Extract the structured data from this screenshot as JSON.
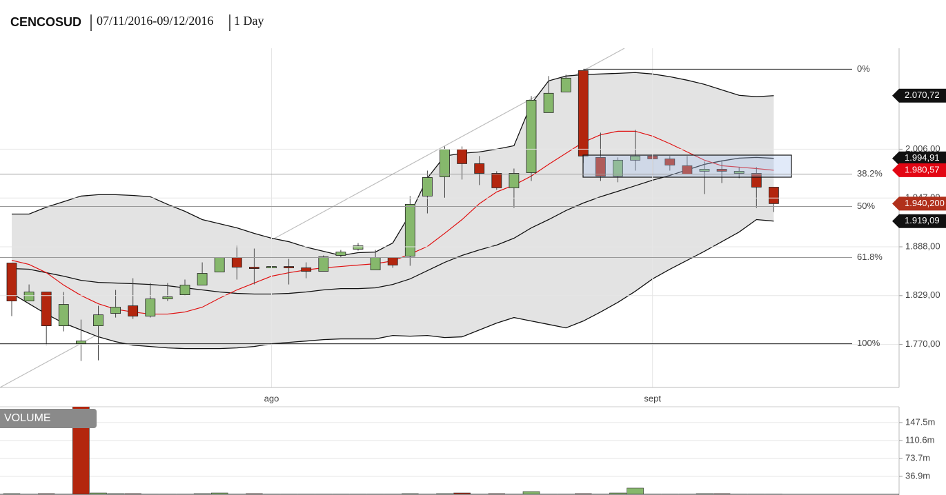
{
  "header": {
    "symbol": "CENCOSUD",
    "range": "07/11/2016-09/12/2016",
    "interval": "1 Day"
  },
  "chart_data": [
    {
      "type": "candlestick",
      "categories": [
        null,
        null,
        null,
        null,
        null,
        null,
        null,
        null,
        null,
        null,
        null,
        null,
        null,
        null,
        null,
        "ago",
        null,
        null,
        null,
        null,
        null,
        null,
        null,
        null,
        null,
        null,
        null,
        null,
        null,
        null,
        null,
        null,
        null,
        null,
        null,
        null,
        null,
        "sept",
        null,
        null,
        null,
        null,
        null,
        null,
        null
      ],
      "open": [
        1868.4,
        1822.5,
        1833.4,
        1792.5,
        1770.8,
        1792.5,
        1807.5,
        1816.7,
        1804.2,
        1825.0,
        1830.0,
        1841.7,
        1857.5,
        1875.1,
        1863.4,
        1862.6,
        1864.2,
        1862.6,
        1858.4,
        1877.6,
        1885.1,
        1860.1,
        1875.1,
        1876.7,
        1949.3,
        1972.6,
        2006.0,
        1988.5,
        1976.8,
        1959.3,
        1977.6,
        2050.2,
        2075.2,
        2101.1,
        1996.0,
        1973.5,
        1992.7,
        1997.7,
        1994.3,
        1986.0,
        1979.3,
        1981.8,
        1976.8,
        1976.8,
        1960.1
      ],
      "high": [
        1868.4,
        1842.5,
        1833.4,
        1833.4,
        1800.0,
        1816.7,
        1835.9,
        1850.0,
        1844.2,
        1844.2,
        1848.4,
        1869.2,
        1873.4,
        1889.2,
        1885.9,
        1884.2,
        1873.4,
        1869.2,
        1877.6,
        1884.2,
        1892.6,
        1884.2,
        1875.1,
        1949.3,
        1980.1,
        2009.3,
        2009.3,
        1997.7,
        1979.3,
        1982.6,
        2070.2,
        2094.4,
        2096.1,
        2101.1,
        2026.0,
        1996.0,
        2029.4,
        1999.3,
        1997.7,
        1997.7,
        1991.0,
        1992.7,
        1984.3,
        1984.3,
        1960.1
      ],
      "low": [
        1804.2,
        1822.5,
        1769.1,
        1785.8,
        1750.0,
        1750.8,
        1802.5,
        1800.8,
        1802.5,
        1822.5,
        1829.2,
        1841.7,
        1857.5,
        1848.4,
        1842.5,
        1845.9,
        1842.5,
        1850.0,
        1858.4,
        1875.1,
        1883.4,
        1860.1,
        1862.6,
        1865.1,
        1928.4,
        1946.8,
        1969.3,
        1962.6,
        1956.8,
        1935.1,
        1967.6,
        2050.2,
        2075.2,
        1989.3,
        1967.6,
        1966.0,
        1980.1,
        1973.5,
        1980.1,
        1976.0,
        1951.8,
        1965.1,
        1971.0,
        1935.1,
        1930.1
      ],
      "close": [
        1822.5,
        1833.4,
        1792.5,
        1818.4,
        1774.1,
        1805.8,
        1815.0,
        1804.2,
        1825.0,
        1827.5,
        1841.7,
        1855.9,
        1875.1,
        1863.4,
        1861.7,
        1864.2,
        1862.6,
        1858.4,
        1875.9,
        1881.7,
        1889.2,
        1875.1,
        1865.9,
        1939.3,
        1971.8,
        2006.0,
        1988.5,
        1976.8,
        1959.3,
        1976.8,
        2065.2,
        2073.6,
        2091.9,
        1997.7,
        1973.5,
        1992.7,
        1997.7,
        1994.3,
        1986.8,
        1976.0,
        1981.8,
        1979.3,
        1979.3,
        1960.1,
        1940.2
      ],
      "up_color": "#86b86c",
      "down_color": "#b3260e",
      "band_color": "#e3e3e3",
      "series": [
        {
          "color": "#111111",
          "values": [
            1927.6,
            1927.6,
            1935.9,
            1942.6,
            1949.3,
            1951.0,
            1951.0,
            1950.1,
            1948.5,
            1939.3,
            1930.9,
            1920.9,
            1915.9,
            1910.9,
            1904.3,
            1898.4,
            1894.2,
            1887.6,
            1882.6,
            1877.6,
            1880.9,
            1881.7,
            1892.6,
            1927.6,
            1971.0,
            1997.7,
            2001.0,
            2002.7,
            2006.0,
            2010.2,
            2061.0,
            2088.6,
            2094.4,
            2096.1,
            2096.9,
            2097.7,
            2098.6,
            2096.9,
            2093.6,
            2089.4,
            2084.4,
            2077.7,
            2071.1,
            2069.4,
            2070.72
          ]
        },
        {
          "color": "#111111",
          "values": [
            1861.7,
            1860.9,
            1856.7,
            1852.5,
            1847.5,
            1845.0,
            1844.2,
            1843.4,
            1842.5,
            1840.9,
            1838.4,
            1835.9,
            1833.4,
            1831.7,
            1830.9,
            1830.9,
            1831.7,
            1833.4,
            1835.9,
            1837.5,
            1837.5,
            1838.4,
            1842.5,
            1849.2,
            1859.2,
            1869.2,
            1877.6,
            1884.2,
            1890.1,
            1898.4,
            1910.9,
            1920.9,
            1931.8,
            1940.9,
            1948.5,
            1955.1,
            1961.8,
            1968.5,
            1974.3,
            1981.0,
            1987.7,
            1991.8,
            1995.2,
            1996.0,
            1994.91
          ]
        },
        {
          "color": "#111111",
          "values": [
            1831.7,
            1819.2,
            1806.7,
            1795.8,
            1787.5,
            1779.2,
            1773.3,
            1769.1,
            1767.5,
            1765.8,
            1765.0,
            1765.0,
            1765.0,
            1765.8,
            1767.5,
            1770.8,
            1772.5,
            1774.1,
            1775.8,
            1776.7,
            1776.7,
            1776.7,
            1780.8,
            1780.0,
            1780.8,
            1778.3,
            1779.2,
            1787.5,
            1795.8,
            1802.5,
            1798.3,
            1794.2,
            1790.0,
            1798.3,
            1809.2,
            1820.9,
            1834.2,
            1849.2,
            1860.9,
            1871.7,
            1882.6,
            1894.2,
            1905.9,
            1920.9,
            1919.09
          ]
        },
        {
          "color": "#e01010",
          "values": [
            1871.7,
            1866.7,
            1856.7,
            1841.7,
            1829.2,
            1819.2,
            1812.5,
            1809.2,
            1806.7,
            1806.7,
            1809.2,
            1815.0,
            1825.9,
            1835.9,
            1844.2,
            1852.5,
            1856.7,
            1860.1,
            1862.6,
            1864.2,
            1865.9,
            1867.6,
            1870.9,
            1879.2,
            1888.4,
            1904.3,
            1920.9,
            1940.1,
            1954.3,
            1962.6,
            1973.5,
            1987.7,
            2001.0,
            2014.3,
            2023.5,
            2027.7,
            2027.7,
            2021.8,
            2012.7,
            2002.7,
            1992.7,
            1986.0,
            1984.3,
            1982.6,
            1980.57
          ]
        }
      ],
      "ylim": [
        1718,
        2128
      ],
      "yticks": [
        {
          "value": 1770,
          "label": "1.770,00"
        },
        {
          "value": 1829,
          "label": "1.829,00"
        },
        {
          "value": 1888,
          "label": "1.888,00"
        },
        {
          "value": 1947,
          "label": "1.947,00"
        },
        {
          "value": 2006,
          "label": "2.006,00"
        }
      ],
      "grid": true,
      "fib_levels": [
        {
          "value": 2102.7,
          "label": "0%"
        },
        {
          "value": 1975.9,
          "label": "38.2%"
        },
        {
          "value": 1936.8,
          "label": "50%"
        },
        {
          "value": 1875.1,
          "label": "61.8%"
        },
        {
          "value": 1770.8,
          "label": "100%"
        }
      ],
      "price_flags": [
        {
          "value": 2070.72,
          "label": "2.070,72",
          "color": "#111111"
        },
        {
          "value": 1994.91,
          "label": "1.994,91",
          "color": "#111111"
        },
        {
          "value": 1980.57,
          "label": "1.980,57",
          "color": "#e30613"
        },
        {
          "value": 1940.2,
          "label": "1.940,200",
          "color": "#b0301b"
        },
        {
          "value": 1919.09,
          "label": "1.919,09",
          "color": "#111111"
        }
      ]
    },
    {
      "type": "volume",
      "title": "VOLUME",
      "values": [
        1.4,
        0.5,
        1.4,
        0.5,
        200,
        2.8,
        1.4,
        1.4,
        0.5,
        0.5,
        0.5,
        1.4,
        2.8,
        0.5,
        1.4,
        0.5,
        0.5,
        0.5,
        0.5,
        0.5,
        0.5,
        0.5,
        0.5,
        1.4,
        0.5,
        1.4,
        2.8,
        0.5,
        1.4,
        0.5,
        5.7,
        0.5,
        0.5,
        1.4,
        0.5,
        2.8,
        12.8,
        0.5,
        0.5,
        0.5,
        1.4,
        1.4,
        0.5,
        0.5,
        0.5
      ],
      "ylim": [
        0,
        180
      ],
      "yticks": [
        {
          "value": 36.9,
          "label": "36.9m"
        },
        {
          "value": 73.7,
          "label": "73.7m"
        },
        {
          "value": 110.6,
          "label": "110.6m"
        },
        {
          "value": 147.5,
          "label": "147.5m"
        }
      ],
      "grid": true
    }
  ]
}
